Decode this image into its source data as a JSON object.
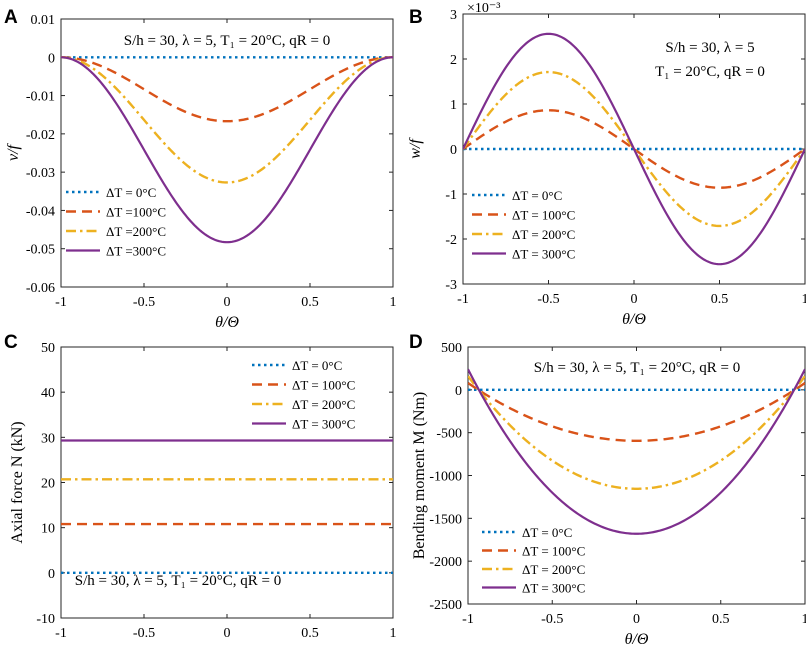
{
  "colors": {
    "dT0": "#0072BD",
    "dT100": "#D95319",
    "dT200": "#EDB120",
    "dT300": "#7E2F8E"
  },
  "panels": [
    {
      "label": "A",
      "ylabel": "v/f",
      "xlabel": "θ/Θ",
      "yticks": [
        "0.01",
        "0",
        "-0.01",
        "-0.02",
        "-0.03",
        "-0.04",
        "-0.05",
        "-0.06"
      ],
      "xticks": [
        "-1",
        "-0.5",
        "0",
        "0.5",
        "1"
      ],
      "annotation_lines": [
        "S/h = 30, λ = 5, T₁ = 20°C, qR = 0"
      ],
      "legend": [
        "ΔT = 0°C",
        "ΔT =100°C",
        "ΔT =200°C",
        "ΔT =300°C"
      ]
    },
    {
      "label": "B",
      "ylabel": "w/f",
      "xlabel": "θ/Θ",
      "exponent": "×10⁻³",
      "yticks": [
        "3",
        "2",
        "1",
        "0",
        "-1",
        "-2",
        "-3"
      ],
      "xticks": [
        "-1",
        "-0.5",
        "0",
        "0.5",
        "1"
      ],
      "annotation_lines": [
        "S/h = 30, λ = 5",
        "T₁ = 20°C, qR = 0"
      ],
      "legend": [
        "ΔT = 0°C",
        "ΔT = 100°C",
        "ΔT = 200°C",
        "ΔT = 300°C"
      ]
    },
    {
      "label": "C",
      "ylabel": "Axial force N (kN)",
      "xlabel": "θ/Θ",
      "yticks": [
        "50",
        "40",
        "30",
        "20",
        "10",
        "0",
        "-10"
      ],
      "xticks": [
        "-1",
        "-0.5",
        "0",
        "0.5",
        "1"
      ],
      "annotation_lines": [
        "S/h = 30, λ = 5, T₁ = 20°C, qR = 0"
      ],
      "legend": [
        "ΔT = 0°C",
        "ΔT = 100°C",
        "ΔT = 200°C",
        "ΔT = 300°C"
      ]
    },
    {
      "label": "D",
      "ylabel": "Bending moment M (Nm)",
      "xlabel": "θ/Θ",
      "yticks": [
        "500",
        "0",
        "-500",
        "-1000",
        "-1500",
        "-2000",
        "-2500"
      ],
      "xticks": [
        "-1",
        "-0.5",
        "0",
        "0.5",
        "1"
      ],
      "annotation_lines": [
        "S/h = 30, λ = 5, T₁ = 20°C, qR = 0"
      ],
      "legend": [
        "ΔT = 0°C",
        "ΔT = 100°C",
        "ΔT = 200°C",
        "ΔT = 300°C"
      ]
    }
  ],
  "chart_data": [
    {
      "type": "line",
      "title": "A",
      "xlabel": "θ/Θ",
      "ylabel": "v/f",
      "xlim": [
        -1,
        1
      ],
      "ylim": [
        -0.06,
        0.01
      ],
      "x": [
        -1,
        -0.75,
        -0.5,
        -0.25,
        0,
        0.25,
        0.5,
        0.75,
        1
      ],
      "series": [
        {
          "name": "ΔT = 0°C",
          "values": [
            0,
            0,
            0,
            0,
            0,
            0,
            0,
            0,
            0
          ]
        },
        {
          "name": "ΔT = 100°C",
          "values": [
            0,
            -0.0025,
            -0.0083,
            -0.0142,
            -0.0167,
            -0.0142,
            -0.0083,
            -0.0025,
            0
          ]
        },
        {
          "name": "ΔT = 200°C",
          "values": [
            0,
            -0.0048,
            -0.0163,
            -0.0279,
            -0.0327,
            -0.0279,
            -0.0163,
            -0.0048,
            0
          ]
        },
        {
          "name": "ΔT = 300°C",
          "values": [
            0,
            -0.007,
            -0.0241,
            -0.0412,
            -0.0483,
            -0.0412,
            -0.0241,
            -0.007,
            0
          ]
        }
      ]
    },
    {
      "type": "line",
      "title": "B",
      "xlabel": "θ/Θ",
      "ylabel": "w/f",
      "y_scale": "×10⁻³",
      "xlim": [
        -1,
        1
      ],
      "ylim": [
        -3,
        3
      ],
      "x": [
        -1,
        -0.75,
        -0.5,
        -0.25,
        0,
        0.25,
        0.5,
        0.75,
        1
      ],
      "series": [
        {
          "name": "ΔT = 0°C",
          "values": [
            0,
            0,
            0,
            0,
            0,
            0,
            0,
            0,
            0
          ]
        },
        {
          "name": "ΔT = 100°C",
          "values": [
            0,
            0.61,
            0.86,
            0.61,
            0,
            -0.61,
            -0.86,
            -0.61,
            0
          ]
        },
        {
          "name": "ΔT = 200°C",
          "values": [
            0,
            1.21,
            1.71,
            1.21,
            0,
            -1.21,
            -1.71,
            -1.21,
            0
          ]
        },
        {
          "name": "ΔT = 300°C",
          "values": [
            0,
            1.81,
            2.56,
            1.81,
            0,
            -1.81,
            -2.56,
            -1.81,
            0
          ]
        }
      ]
    },
    {
      "type": "line",
      "title": "C",
      "xlabel": "θ/Θ",
      "ylabel": "Axial force N (kN)",
      "xlim": [
        -1,
        1
      ],
      "ylim": [
        -10,
        50
      ],
      "x": [
        -1,
        1
      ],
      "series": [
        {
          "name": "ΔT = 0°C",
          "values": [
            0,
            0
          ]
        },
        {
          "name": "ΔT = 100°C",
          "values": [
            10.8,
            10.8
          ]
        },
        {
          "name": "ΔT = 200°C",
          "values": [
            20.7,
            20.7
          ]
        },
        {
          "name": "ΔT = 300°C",
          "values": [
            29.3,
            29.3
          ]
        }
      ]
    },
    {
      "type": "line",
      "title": "D",
      "xlabel": "θ/Θ",
      "ylabel": "Bending moment M (Nm)",
      "xlim": [
        -1,
        1
      ],
      "ylim": [
        -2500,
        500
      ],
      "x": [
        -1,
        -0.75,
        -0.5,
        -0.25,
        0,
        0.25,
        0.5,
        0.75,
        1
      ],
      "series": [
        {
          "name": "ΔT = 0°C",
          "values": [
            0,
            0,
            0,
            0,
            0,
            0,
            0,
            0,
            0
          ]
        },
        {
          "name": "ΔT = 100°C",
          "values": [
            80,
            -180,
            -410,
            -550,
            -595,
            -550,
            -410,
            -180,
            80
          ]
        },
        {
          "name": "ΔT = 200°C",
          "values": [
            160,
            -340,
            -790,
            -1070,
            -1155,
            -1070,
            -790,
            -340,
            160
          ]
        },
        {
          "name": "ΔT = 300°C",
          "values": [
            240,
            -500,
            -1160,
            -1570,
            -1680,
            -1570,
            -1160,
            -500,
            240
          ]
        }
      ]
    }
  ]
}
